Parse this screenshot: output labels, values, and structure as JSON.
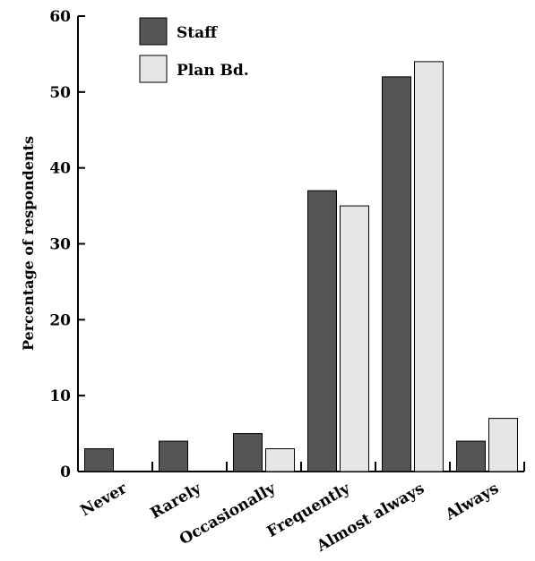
{
  "chart_data": {
    "type": "bar",
    "title": "",
    "xlabel": "",
    "ylabel": "Percentage of respondents",
    "ylim": [
      0,
      60
    ],
    "yticks": [
      0,
      10,
      20,
      30,
      40,
      50,
      60
    ],
    "categories": [
      "Never",
      "Rarely",
      "Occasionally",
      "Frequently",
      "Almost always",
      "Always"
    ],
    "series": [
      {
        "name": "Staff",
        "color": "#555555",
        "values": [
          3,
          4,
          5,
          37,
          52,
          4
        ]
      },
      {
        "name": "Plan Bd.",
        "color": "#e6e6e6",
        "values": [
          0,
          0,
          3,
          35,
          54,
          7
        ]
      }
    ],
    "legend": "top-left",
    "grid": false
  }
}
